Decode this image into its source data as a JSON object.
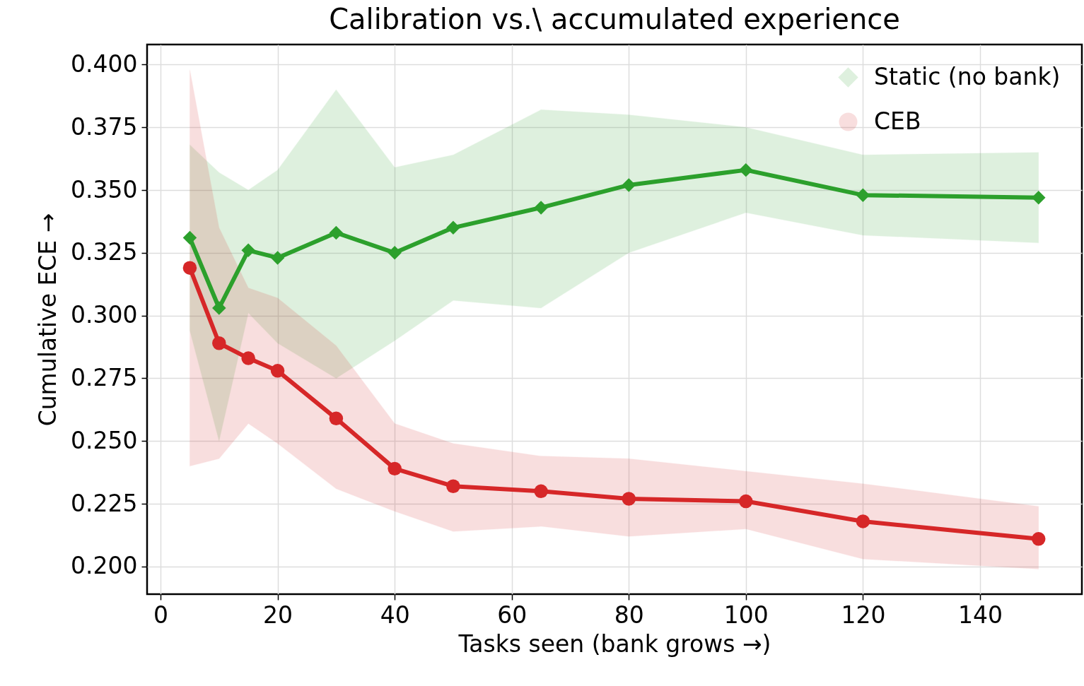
{
  "chart_data": {
    "type": "line",
    "title": "Calibration vs.\\ accumulated experience",
    "xlabel": "Tasks seen (bank grows →)",
    "ylabel": "Cumulative ECE →",
    "xlim": [
      -2.3,
      157.4
    ],
    "xticks": [
      0,
      20,
      40,
      60,
      80,
      100,
      120,
      140
    ],
    "ylim": [
      0.189,
      0.408
    ],
    "yticks": [
      {
        "value": 0.2,
        "label": "0.200"
      },
      {
        "value": 0.225,
        "label": "0.225"
      },
      {
        "value": 0.25,
        "label": "0.250"
      },
      {
        "value": 0.275,
        "label": "0.275"
      },
      {
        "value": 0.3,
        "label": "0.300"
      },
      {
        "value": 0.325,
        "label": "0.325"
      },
      {
        "value": 0.35,
        "label": "0.350"
      },
      {
        "value": 0.375,
        "label": "0.375"
      },
      {
        "value": 0.4,
        "label": "0.400"
      }
    ],
    "x": [
      5,
      10,
      15,
      20,
      30,
      40,
      50,
      65,
      80,
      100,
      120,
      150
    ],
    "grid": true,
    "legend": "top right",
    "series": [
      {
        "name": "Static (no bank)",
        "color": "#2ca02c",
        "marker": "diamond",
        "values": [
          0.331,
          0.303,
          0.326,
          0.323,
          0.333,
          0.325,
          0.335,
          0.343,
          0.352,
          0.358,
          0.348,
          0.347
        ],
        "lower": [
          0.294,
          0.25,
          0.301,
          0.289,
          0.275,
          0.29,
          0.306,
          0.303,
          0.325,
          0.341,
          0.332,
          0.329
        ],
        "upper": [
          0.368,
          0.357,
          0.35,
          0.358,
          0.39,
          0.359,
          0.364,
          0.382,
          0.38,
          0.375,
          0.364,
          0.365
        ]
      },
      {
        "name": "CEB",
        "color": "#d62728",
        "marker": "circle",
        "values": [
          0.319,
          0.289,
          0.283,
          0.278,
          0.259,
          0.239,
          0.232,
          0.23,
          0.227,
          0.226,
          0.218,
          0.211
        ],
        "lower": [
          0.24,
          0.243,
          0.257,
          0.249,
          0.231,
          0.222,
          0.214,
          0.216,
          0.212,
          0.215,
          0.203,
          0.199
        ],
        "upper": [
          0.398,
          0.335,
          0.311,
          0.307,
          0.288,
          0.257,
          0.249,
          0.244,
          0.243,
          0.238,
          0.233,
          0.224
        ]
      }
    ]
  }
}
